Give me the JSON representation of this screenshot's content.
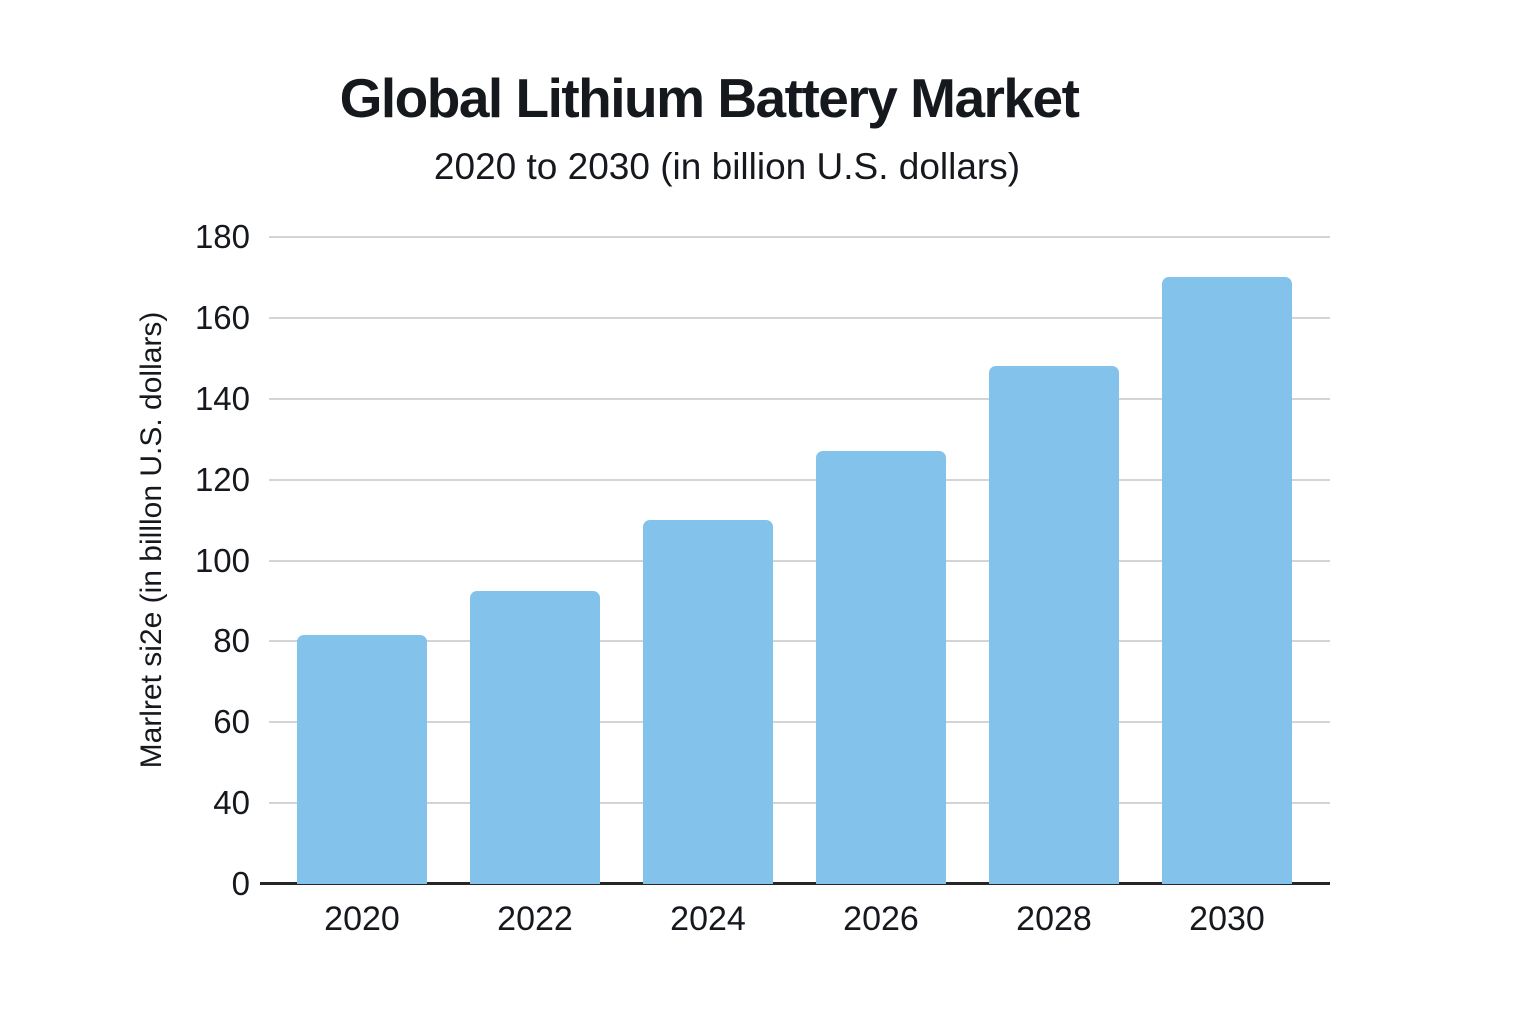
{
  "title": "Global Lithium Battery Market",
  "subtitle": "2020 to 2030 (in billion U.S. dollars)",
  "chart_data": {
    "type": "bar",
    "title": "Global Lithium Battery Market",
    "subtitle": "2020 to 2030 (in billion U.S. dollars)",
    "categories": [
      "2020",
      "2022",
      "2024",
      "2026",
      "2028",
      "2030"
    ],
    "values": [
      81.5,
      92.5,
      110,
      127,
      148,
      170
    ],
    "xlabel": "",
    "ylabel": "Marlret si2e (in billlon U.S. dollars)",
    "y_tick_labels": [
      "0",
      "40",
      "60",
      "80",
      "100",
      "120",
      "140",
      "160",
      "180"
    ],
    "y_tick_values": [
      0,
      40,
      60,
      80,
      100,
      120,
      140,
      160,
      180
    ],
    "ylim": [
      0,
      180
    ],
    "grid": "horizontal",
    "legend": "none",
    "bar_color": "#83c2eb",
    "gridline_color": "#d2d4d7",
    "axis_line_color": "#25262a",
    "text_color": "#15181d",
    "background_color": "#ffffff"
  }
}
